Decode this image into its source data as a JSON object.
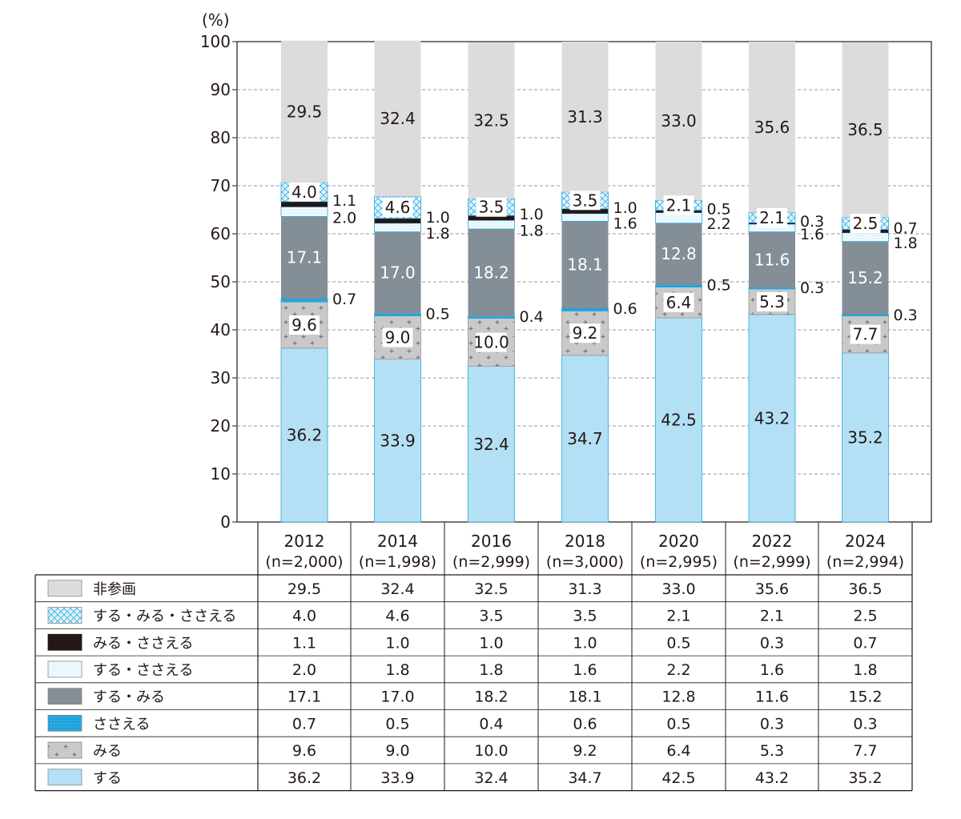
{
  "chart_data": {
    "type": "bar",
    "stacked": true,
    "unit_label": "(%)",
    "ylim": [
      0,
      100
    ],
    "yticks": [
      0,
      10,
      20,
      30,
      40,
      50,
      60,
      70,
      80,
      90,
      100
    ],
    "grid": true,
    "categories": [
      "2012",
      "2014",
      "2016",
      "2018",
      "2020",
      "2022",
      "2024"
    ],
    "sample_sizes": [
      "(n=2,000)",
      "(n=1,998)",
      "(n=2,999)",
      "(n=3,000)",
      "(n=2,995)",
      "(n=2,999)",
      "(n=2,994)"
    ],
    "series": [
      {
        "name": "する",
        "color": "#b3e0f5",
        "pattern": "solid",
        "values": [
          36.2,
          33.9,
          32.4,
          34.7,
          42.5,
          43.2,
          35.2
        ]
      },
      {
        "name": "みる",
        "color": "#c9c9c9",
        "pattern": "plus",
        "values": [
          9.6,
          9.0,
          10.0,
          9.2,
          6.4,
          5.3,
          7.7
        ]
      },
      {
        "name": "ささえる",
        "color": "#27a9e1",
        "pattern": "dots",
        "values": [
          0.7,
          0.5,
          0.4,
          0.6,
          0.5,
          0.3,
          0.3
        ]
      },
      {
        "name": "する・みる",
        "color": "#848e96",
        "pattern": "solid",
        "values": [
          17.1,
          17.0,
          18.2,
          18.1,
          12.8,
          11.6,
          15.2
        ]
      },
      {
        "name": "する・ささえる",
        "color": "#eaf7fd",
        "pattern": "lightdots",
        "values": [
          2.0,
          1.8,
          1.8,
          1.6,
          2.2,
          1.6,
          1.8
        ]
      },
      {
        "name": "みる・ささえる",
        "color": "#231815",
        "pattern": "solid",
        "values": [
          1.1,
          1.0,
          1.0,
          1.0,
          0.5,
          0.3,
          0.7
        ]
      },
      {
        "name": "する・みる・ささえる",
        "color": "#d2eefa",
        "pattern": "crosshatch",
        "values": [
          4.0,
          4.6,
          3.5,
          3.5,
          2.1,
          2.1,
          2.5
        ]
      },
      {
        "name": "非参画",
        "color": "#dcdcdc",
        "pattern": "solid",
        "values": [
          29.5,
          32.4,
          32.5,
          31.3,
          33.0,
          35.6,
          36.5
        ]
      }
    ]
  }
}
